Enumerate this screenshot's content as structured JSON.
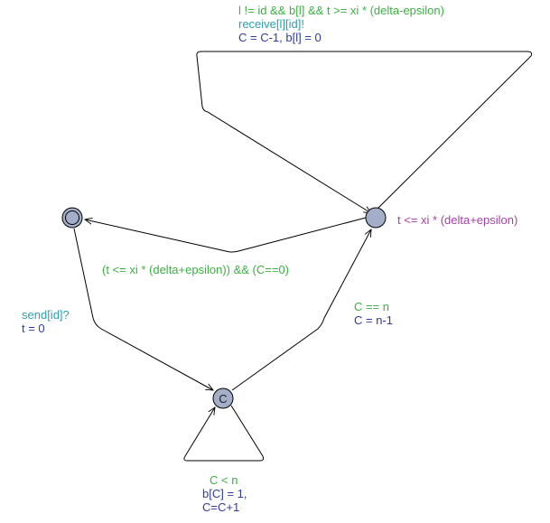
{
  "colors": {
    "guard": "#3cb043",
    "sync": "#2a9fb0",
    "assignment": "#2f3c9e",
    "invariant": "#a540a8",
    "location_fill": "#a3aec9",
    "edge": "#000000"
  },
  "locations": [
    {
      "id": "initial",
      "name": "",
      "invariant": "",
      "committed": false,
      "initial": true
    },
    {
      "id": "wait",
      "name": "",
      "invariant": "t <= xi * (delta+epsilon)",
      "committed": false,
      "initial": false
    },
    {
      "id": "committed",
      "name": "C",
      "invariant": "",
      "committed": true,
      "initial": false
    }
  ],
  "edges": {
    "wait_self": {
      "guard": "l != id && b[l] && t >= xi * (delta-epsilon)",
      "sync": "receive[l][id]!",
      "update": "C = C-1, b[l] = 0"
    },
    "wait_to_initial": {
      "guard": "(t <= xi * (delta+epsilon)) && (C==0)"
    },
    "initial_to_committed": {
      "sync": "send[id]?",
      "update": "t = 0"
    },
    "committed_to_wait": {
      "guard": "C == n",
      "update": "C = n-1"
    },
    "committed_self": {
      "guard": "C < n",
      "update_line1": "b[C] = 1,",
      "update_line2": "C=C+1"
    }
  }
}
